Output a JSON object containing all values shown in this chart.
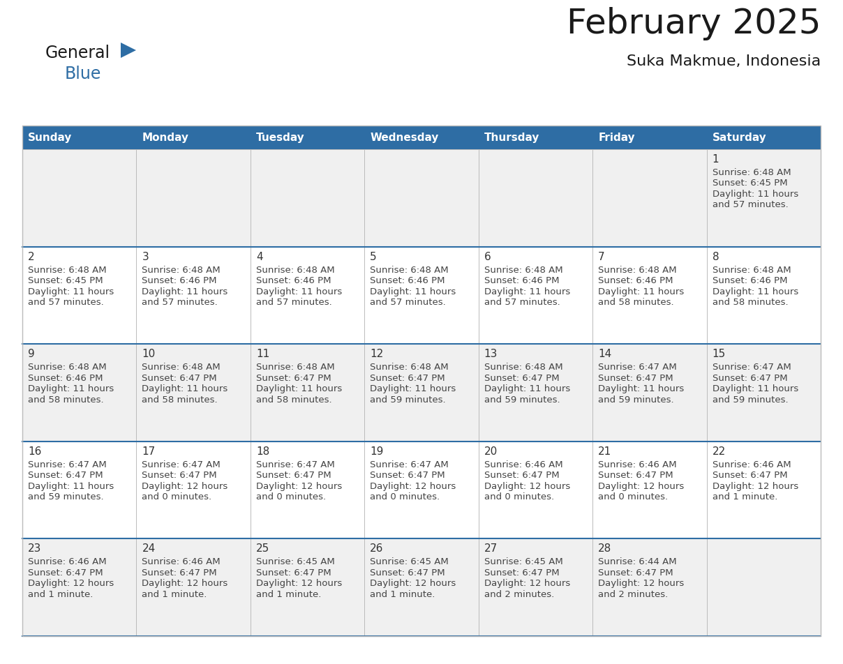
{
  "title": "February 2025",
  "subtitle": "Suka Makmue, Indonesia",
  "header_bg": "#2E6DA4",
  "header_text_color": "#FFFFFF",
  "row_bg_odd": "#F0F0F0",
  "row_bg_even": "#FFFFFF",
  "day_number_color": "#333333",
  "cell_text_color": "#444444",
  "separator_color": "#2E6DA4",
  "grid_color": "#BBBBBB",
  "logo_general_color": "#1a1a1a",
  "logo_blue_color": "#2E6DA4",
  "logo_triangle_color": "#2E6DA4",
  "title_color": "#1a1a1a",
  "weekdays": [
    "Sunday",
    "Monday",
    "Tuesday",
    "Wednesday",
    "Thursday",
    "Friday",
    "Saturday"
  ],
  "calendar_data": [
    [
      null,
      null,
      null,
      null,
      null,
      null,
      {
        "day": "1",
        "sunrise": "6:48 AM",
        "sunset": "6:45 PM",
        "dl1": "Daylight: 11 hours",
        "dl2": "and 57 minutes."
      }
    ],
    [
      {
        "day": "2",
        "sunrise": "6:48 AM",
        "sunset": "6:45 PM",
        "dl1": "Daylight: 11 hours",
        "dl2": "and 57 minutes."
      },
      {
        "day": "3",
        "sunrise": "6:48 AM",
        "sunset": "6:46 PM",
        "dl1": "Daylight: 11 hours",
        "dl2": "and 57 minutes."
      },
      {
        "day": "4",
        "sunrise": "6:48 AM",
        "sunset": "6:46 PM",
        "dl1": "Daylight: 11 hours",
        "dl2": "and 57 minutes."
      },
      {
        "day": "5",
        "sunrise": "6:48 AM",
        "sunset": "6:46 PM",
        "dl1": "Daylight: 11 hours",
        "dl2": "and 57 minutes."
      },
      {
        "day": "6",
        "sunrise": "6:48 AM",
        "sunset": "6:46 PM",
        "dl1": "Daylight: 11 hours",
        "dl2": "and 57 minutes."
      },
      {
        "day": "7",
        "sunrise": "6:48 AM",
        "sunset": "6:46 PM",
        "dl1": "Daylight: 11 hours",
        "dl2": "and 58 minutes."
      },
      {
        "day": "8",
        "sunrise": "6:48 AM",
        "sunset": "6:46 PM",
        "dl1": "Daylight: 11 hours",
        "dl2": "and 58 minutes."
      }
    ],
    [
      {
        "day": "9",
        "sunrise": "6:48 AM",
        "sunset": "6:46 PM",
        "dl1": "Daylight: 11 hours",
        "dl2": "and 58 minutes."
      },
      {
        "day": "10",
        "sunrise": "6:48 AM",
        "sunset": "6:47 PM",
        "dl1": "Daylight: 11 hours",
        "dl2": "and 58 minutes."
      },
      {
        "day": "11",
        "sunrise": "6:48 AM",
        "sunset": "6:47 PM",
        "dl1": "Daylight: 11 hours",
        "dl2": "and 58 minutes."
      },
      {
        "day": "12",
        "sunrise": "6:48 AM",
        "sunset": "6:47 PM",
        "dl1": "Daylight: 11 hours",
        "dl2": "and 59 minutes."
      },
      {
        "day": "13",
        "sunrise": "6:48 AM",
        "sunset": "6:47 PM",
        "dl1": "Daylight: 11 hours",
        "dl2": "and 59 minutes."
      },
      {
        "day": "14",
        "sunrise": "6:47 AM",
        "sunset": "6:47 PM",
        "dl1": "Daylight: 11 hours",
        "dl2": "and 59 minutes."
      },
      {
        "day": "15",
        "sunrise": "6:47 AM",
        "sunset": "6:47 PM",
        "dl1": "Daylight: 11 hours",
        "dl2": "and 59 minutes."
      }
    ],
    [
      {
        "day": "16",
        "sunrise": "6:47 AM",
        "sunset": "6:47 PM",
        "dl1": "Daylight: 11 hours",
        "dl2": "and 59 minutes."
      },
      {
        "day": "17",
        "sunrise": "6:47 AM",
        "sunset": "6:47 PM",
        "dl1": "Daylight: 12 hours",
        "dl2": "and 0 minutes."
      },
      {
        "day": "18",
        "sunrise": "6:47 AM",
        "sunset": "6:47 PM",
        "dl1": "Daylight: 12 hours",
        "dl2": "and 0 minutes."
      },
      {
        "day": "19",
        "sunrise": "6:47 AM",
        "sunset": "6:47 PM",
        "dl1": "Daylight: 12 hours",
        "dl2": "and 0 minutes."
      },
      {
        "day": "20",
        "sunrise": "6:46 AM",
        "sunset": "6:47 PM",
        "dl1": "Daylight: 12 hours",
        "dl2": "and 0 minutes."
      },
      {
        "day": "21",
        "sunrise": "6:46 AM",
        "sunset": "6:47 PM",
        "dl1": "Daylight: 12 hours",
        "dl2": "and 0 minutes."
      },
      {
        "day": "22",
        "sunrise": "6:46 AM",
        "sunset": "6:47 PM",
        "dl1": "Daylight: 12 hours",
        "dl2": "and 1 minute."
      }
    ],
    [
      {
        "day": "23",
        "sunrise": "6:46 AM",
        "sunset": "6:47 PM",
        "dl1": "Daylight: 12 hours",
        "dl2": "and 1 minute."
      },
      {
        "day": "24",
        "sunrise": "6:46 AM",
        "sunset": "6:47 PM",
        "dl1": "Daylight: 12 hours",
        "dl2": "and 1 minute."
      },
      {
        "day": "25",
        "sunrise": "6:45 AM",
        "sunset": "6:47 PM",
        "dl1": "Daylight: 12 hours",
        "dl2": "and 1 minute."
      },
      {
        "day": "26",
        "sunrise": "6:45 AM",
        "sunset": "6:47 PM",
        "dl1": "Daylight: 12 hours",
        "dl2": "and 1 minute."
      },
      {
        "day": "27",
        "sunrise": "6:45 AM",
        "sunset": "6:47 PM",
        "dl1": "Daylight: 12 hours",
        "dl2": "and 2 minutes."
      },
      {
        "day": "28",
        "sunrise": "6:44 AM",
        "sunset": "6:47 PM",
        "dl1": "Daylight: 12 hours",
        "dl2": "and 2 minutes."
      },
      null
    ]
  ]
}
